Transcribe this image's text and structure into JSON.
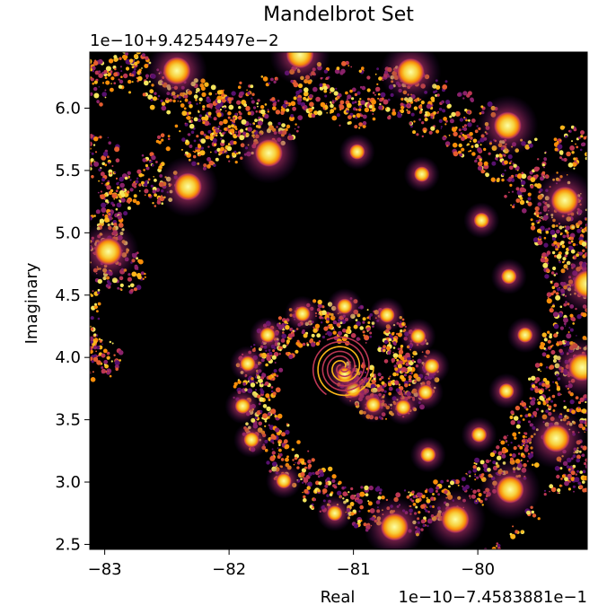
{
  "chart_data": {
    "type": "heatmap",
    "title": "Mandelbrot Set",
    "xlabel": "Real",
    "ylabel": "Imaginary",
    "x_offset_label": "1e−10−7.4583881e−1",
    "y_offset_label": "1e−10+9.4254497e−2",
    "xlim": [
      -83.12,
      -79.12
    ],
    "ylim": [
      2.46,
      6.45
    ],
    "x_ticks": [
      -83,
      -82,
      -81,
      -80
    ],
    "x_tick_labels": [
      "−83",
      "−82",
      "−81",
      "−80"
    ],
    "y_ticks": [
      2.5,
      3.0,
      3.5,
      4.0,
      4.5,
      5.0,
      5.5,
      6.0
    ],
    "y_tick_labels": [
      "2.5",
      "3.0",
      "3.5",
      "4.0",
      "4.5",
      "5.0",
      "5.5",
      "6.0"
    ],
    "colormap": "inferno",
    "grid": false,
    "colors": {
      "background": "#000000",
      "low": "#6b1a5e",
      "mid": "#e2663a",
      "high": "#fcffa4"
    },
    "spiral_center": [
      -81.09,
      3.92
    ],
    "bulbs": [
      [
        -82.42,
        6.3
      ],
      [
        -81.43,
        6.43
      ],
      [
        -80.54,
        6.29
      ],
      [
        -79.76,
        5.86
      ],
      [
        -79.3,
        5.26
      ],
      [
        -79.12,
        4.59
      ],
      [
        -79.16,
        3.92
      ],
      [
        -79.37,
        3.35
      ],
      [
        -79.74,
        2.94
      ],
      [
        -80.18,
        2.7
      ],
      [
        -80.67,
        2.64
      ],
      [
        -81.15,
        2.75
      ],
      [
        -81.56,
        3.01
      ],
      [
        -81.82,
        3.34
      ],
      [
        -81.89,
        3.61
      ],
      [
        -81.85,
        3.95
      ],
      [
        -81.69,
        4.18
      ],
      [
        -81.41,
        4.35
      ],
      [
        -81.07,
        4.41
      ],
      [
        -80.73,
        4.34
      ],
      [
        -80.48,
        4.17
      ],
      [
        -80.37,
        3.93
      ],
      [
        -80.42,
        3.72
      ],
      [
        -80.6,
        3.6
      ],
      [
        -80.84,
        3.62
      ],
      [
        -81.0,
        3.74
      ],
      [
        -81.07,
        3.86
      ],
      [
        -82.33,
        5.37
      ],
      [
        -82.97,
        4.85
      ],
      [
        -81.68,
        5.64
      ],
      [
        -80.97,
        5.65
      ],
      [
        -80.45,
        5.47
      ],
      [
        -79.97,
        5.1
      ],
      [
        -79.75,
        4.65
      ],
      [
        -79.62,
        4.18
      ],
      [
        -79.77,
        3.73
      ],
      [
        -79.99,
        3.38
      ],
      [
        -80.4,
        3.22
      ]
    ]
  }
}
